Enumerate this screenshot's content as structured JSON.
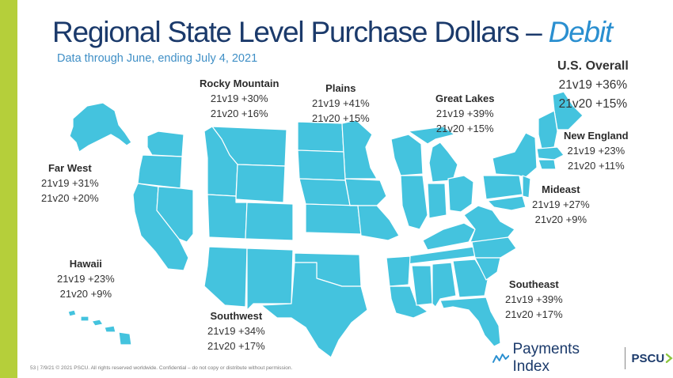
{
  "title": {
    "main": "Regional State Level Purchase Dollars –",
    "highlight": "Debit"
  },
  "subtitle": "Data through June, ending July 4, 2021",
  "overall": {
    "name": "U.S. Overall",
    "v19": "21v19 +36%",
    "v20": "21v20 +15%"
  },
  "regions": {
    "rocky_mountain": {
      "name": "Rocky Mountain",
      "v19": "21v19 +30%",
      "v20": "21v20 +16%"
    },
    "plains": {
      "name": "Plains",
      "v19": "21v19 +41%",
      "v20": "21v20 +15%"
    },
    "great_lakes": {
      "name": "Great Lakes",
      "v19": "21v19 +39%",
      "v20": "21v20 +15%"
    },
    "new_england": {
      "name": "New England",
      "v19": "21v19 +23%",
      "v20": "21v20 +11%"
    },
    "far_west": {
      "name": "Far West",
      "v19": "21v19 +31%",
      "v20": "21v20 +20%"
    },
    "mideast": {
      "name": "Mideast",
      "v19": "21v19 +27%",
      "v20": "21v20 +9%"
    },
    "hawaii": {
      "name": "Hawaii",
      "v19": "21v19 +23%",
      "v20": "21v20 +9%"
    },
    "southeast": {
      "name": "Southeast",
      "v19": "21v19 +39%",
      "v20": "21v20 +17%"
    },
    "southwest": {
      "name": "Southwest",
      "v19": "21v19 +34%",
      "v20": "21v20 +17%"
    }
  },
  "footer": "53 | 7/9/21 © 2021 PSCU. All rights reserved worldwide. Confidential – do not copy or distribute without permission.",
  "logo": {
    "payments_index": "Payments Index",
    "pscu": "PSCU"
  },
  "colors": {
    "map_fill": "#44c3de",
    "title": "#1b3a6b",
    "accent": "#2a8fd0",
    "bar": "#b5cf3a"
  }
}
